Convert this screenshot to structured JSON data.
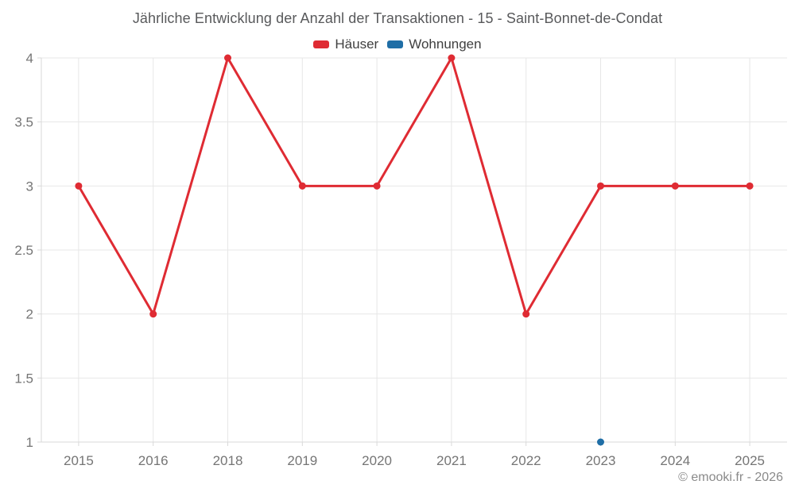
{
  "attribution": "© emooki.fr - 2026",
  "chart_data": {
    "type": "line",
    "title": "Jährliche Entwicklung der Anzahl der Transaktionen - 15 - Saint-Bonnet-de-Condat",
    "categories": [
      "2015",
      "2016",
      "2018",
      "2019",
      "2020",
      "2021",
      "2022",
      "2023",
      "2024",
      "2025"
    ],
    "series": [
      {
        "name": "Häuser",
        "color": "#df2b33",
        "values": [
          3,
          2,
          4,
          3,
          3,
          4,
          2,
          3,
          3,
          3
        ]
      },
      {
        "name": "Wohnungen",
        "color": "#1f6ea6",
        "values": [
          null,
          null,
          null,
          null,
          null,
          null,
          null,
          1,
          null,
          null
        ]
      }
    ],
    "xlabel": "",
    "ylabel": "",
    "ylim": [
      1,
      4
    ],
    "y_ticks": [
      1,
      1.5,
      2,
      2.5,
      3,
      3.5,
      4
    ],
    "grid": true,
    "legend_position": "top"
  },
  "colors": {
    "background": "#ffffff",
    "grid": "#e7e7e7",
    "axis": "#d9d9d9",
    "tick_label": "#757575",
    "title_text": "#58595b",
    "legend_text": "#404040",
    "attribution_text": "#8a8a8a"
  }
}
